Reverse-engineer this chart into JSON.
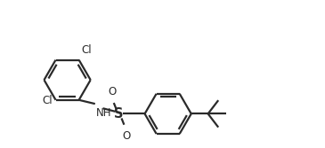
{
  "bg_color": "#ffffff",
  "line_color": "#2a2a2a",
  "line_width": 1.6,
  "font_size": 8.5,
  "figsize": [
    3.65,
    1.67
  ],
  "dpi": 100,
  "xlim": [
    0,
    10
  ],
  "ylim": [
    0,
    4.57
  ]
}
